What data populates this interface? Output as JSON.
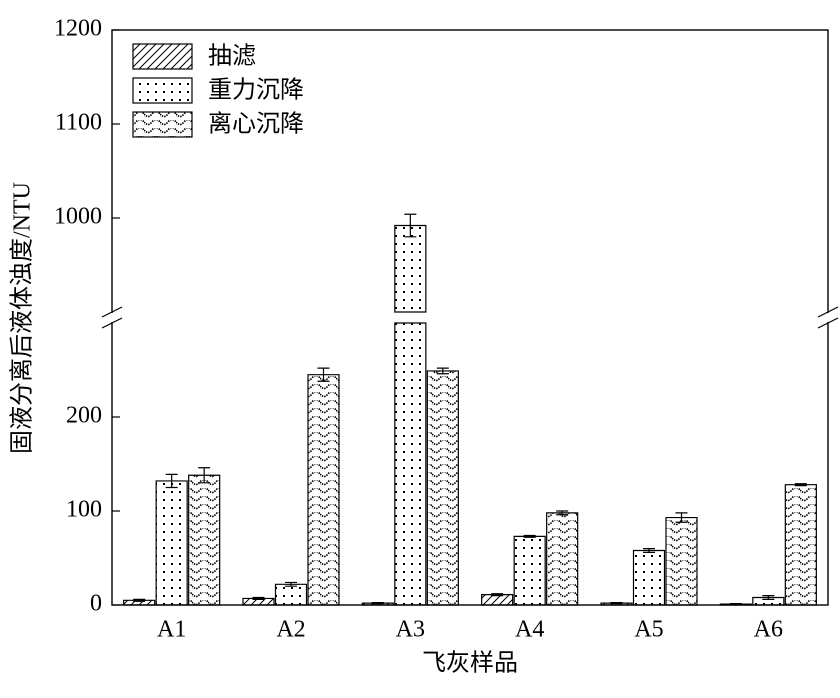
{
  "chart_data": {
    "type": "bar",
    "xlabel": "飞灰样品",
    "ylabel": "固液分离后液体浊度/NTU",
    "categories": [
      "A1",
      "A2",
      "A3",
      "A4",
      "A5",
      "A6"
    ],
    "series": [
      {
        "name": "抽滤",
        "pattern": "hatch",
        "color": "#000000",
        "values": [
          5,
          7,
          2,
          11,
          2,
          1
        ],
        "errors": [
          1,
          1,
          0.5,
          1,
          0.5,
          0.5
        ]
      },
      {
        "name": "重力沉降",
        "pattern": "dots",
        "color": "#000000",
        "values": [
          132,
          22,
          992,
          73,
          58,
          8
        ],
        "errors": [
          7,
          2,
          12,
          1,
          2,
          2
        ]
      },
      {
        "name": "离心沉降",
        "pattern": "wave",
        "color": "#000000",
        "values": [
          138,
          245,
          249,
          98,
          93,
          128
        ],
        "errors": [
          8,
          7,
          3,
          2,
          5,
          1
        ]
      }
    ],
    "ylim": [
      0,
      1200
    ],
    "axis_break": [
      300,
      900
    ],
    "yticks": [
      0,
      100,
      200,
      1000,
      1100,
      1200
    ],
    "legend": "upper left"
  }
}
